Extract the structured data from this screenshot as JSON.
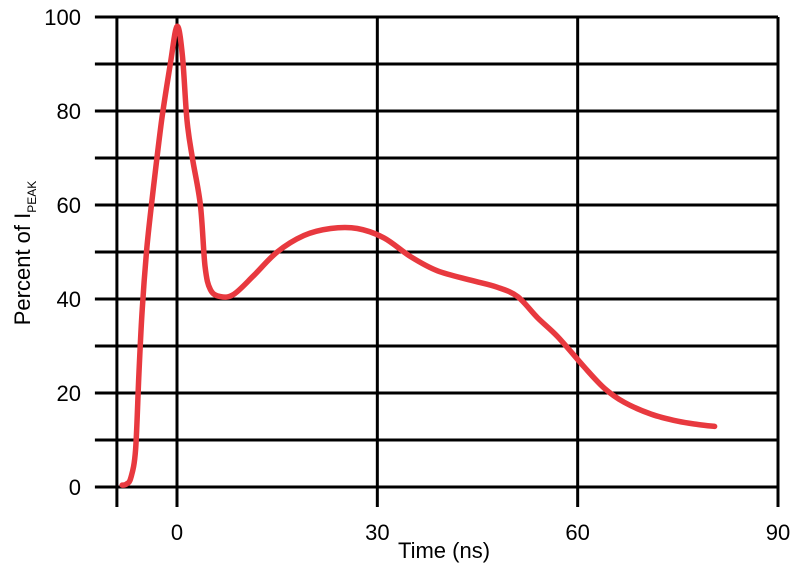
{
  "chart_data": {
    "type": "line",
    "title": "",
    "xlabel": "Time (ns)",
    "ylabel_main": "Percent of I",
    "ylabel_sub": "PEAK",
    "xlim": [
      -9,
      90
    ],
    "ylim": [
      0,
      100
    ],
    "x_ticks": [
      0,
      30,
      60,
      90
    ],
    "y_ticks": [
      0,
      20,
      40,
      60,
      80,
      100
    ],
    "x_grid": [
      -9,
      0,
      30,
      60,
      90
    ],
    "y_grid": [
      0,
      10,
      20,
      30,
      40,
      50,
      60,
      70,
      80,
      90,
      100
    ],
    "grid": true,
    "line_color": "#e8393f",
    "grid_color": "#000000",
    "series": [
      {
        "x": [
          -8.2,
          -7.6,
          -6.9,
          -6.2,
          -5.7,
          -5.2,
          -4.5,
          -3.5,
          -2.3,
          -1.0,
          0,
          0.8,
          1.5,
          2.3,
          3.5,
          4.2,
          5.0,
          6.5,
          8.5,
          11.5,
          15,
          19,
          23,
          27,
          31,
          35,
          39,
          44,
          48,
          51,
          54,
          57,
          61,
          64,
          67,
          71,
          75,
          78,
          80.5
        ],
        "y": [
          0.4,
          0.6,
          2.0,
          8,
          24,
          38,
          51,
          64,
          78,
          90,
          98,
          92,
          78,
          70,
          60,
          47,
          42,
          40.5,
          41,
          45,
          50,
          53.5,
          55,
          55,
          53,
          49,
          46,
          44,
          42.5,
          40.5,
          36,
          32,
          25.5,
          21,
          18,
          15.5,
          14,
          13.3,
          12.9
        ]
      }
    ]
  }
}
